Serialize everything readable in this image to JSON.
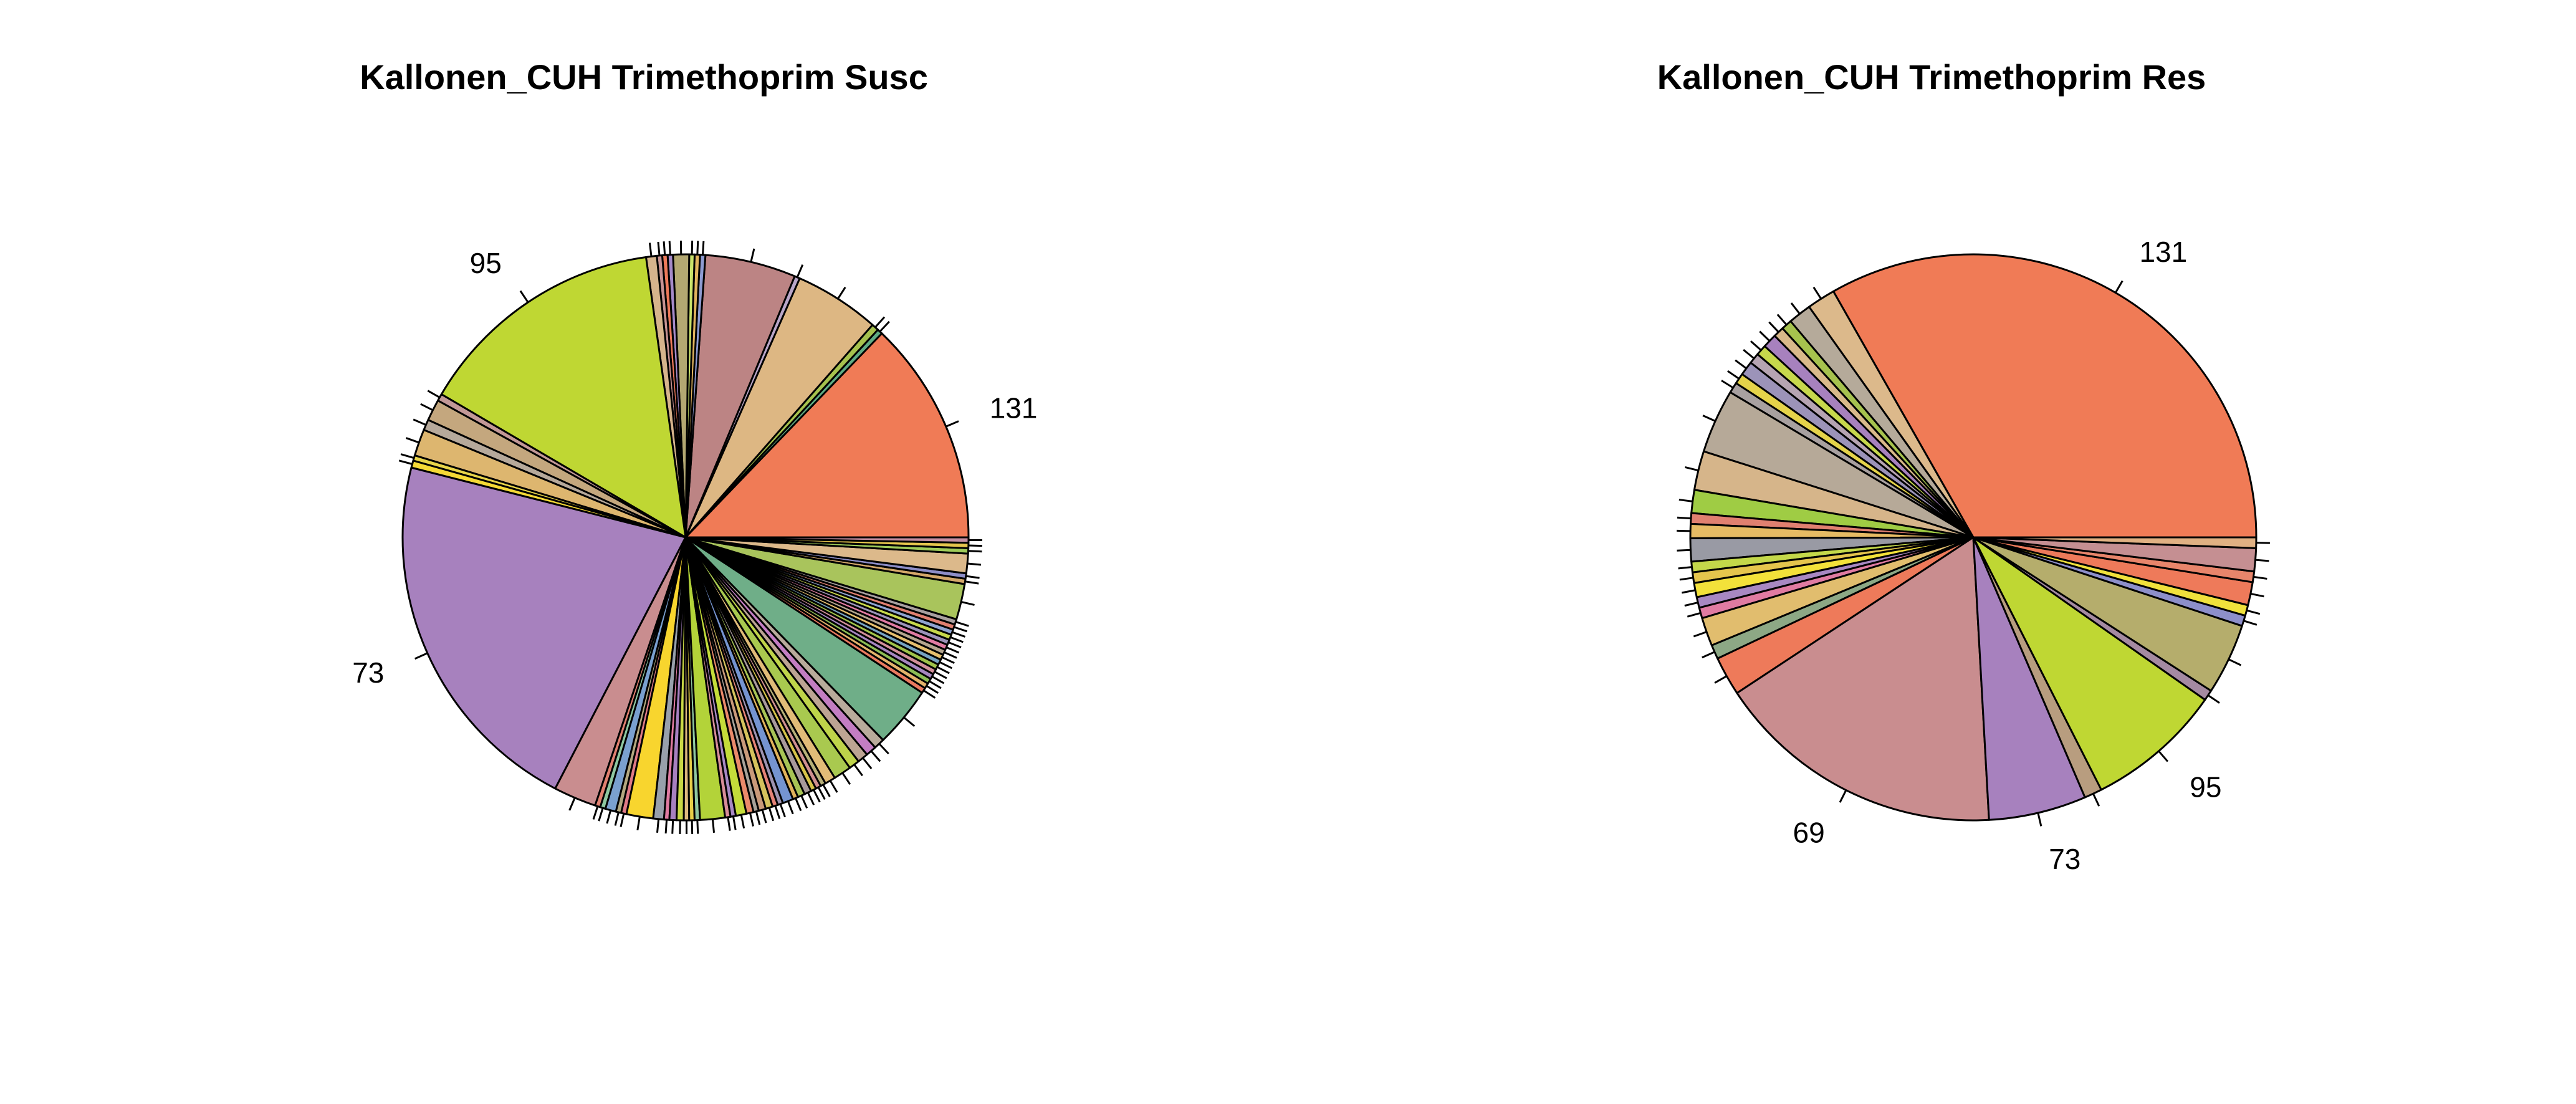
{
  "chart_data": [
    {
      "type": "pie",
      "title": "Kallonen_CUH Trimethoprim Susc",
      "slices": [
        {
          "label": "131",
          "value": 12.6,
          "color": "#f07b56"
        },
        {
          "label": "",
          "value": 0.3,
          "color": "#5fab84"
        },
        {
          "label": "",
          "value": 0.4,
          "color": "#a6c24e"
        },
        {
          "label": "",
          "value": 4.8,
          "color": "#ddb783"
        },
        {
          "label": "",
          "value": 0.3,
          "color": "#b9a6c8"
        },
        {
          "label": "",
          "value": 5.1,
          "color": "#bc8484"
        },
        {
          "label": "",
          "value": 0.3,
          "color": "#8d9bd1"
        },
        {
          "label": "",
          "value": 0.3,
          "color": "#e0b35e"
        },
        {
          "label": "",
          "value": 0.3,
          "color": "#c8e26a"
        },
        {
          "label": "",
          "value": 0.9,
          "color": "#b3a872"
        },
        {
          "label": "",
          "value": 0.3,
          "color": "#a58ac9"
        },
        {
          "label": "",
          "value": 0.3,
          "color": "#ee7a5a"
        },
        {
          "label": "",
          "value": 0.3,
          "color": "#c89393"
        },
        {
          "label": "",
          "value": 0.6,
          "color": "#d6b48c"
        },
        {
          "label": "95",
          "value": 14.1,
          "color": "#bfd733"
        },
        {
          "label": "",
          "value": 0.4,
          "color": "#c29897"
        },
        {
          "label": "",
          "value": 1.2,
          "color": "#c4a77e"
        },
        {
          "label": "",
          "value": 0.6,
          "color": "#b6a99b"
        },
        {
          "label": "",
          "value": 1.5,
          "color": "#ddb66f"
        },
        {
          "label": "",
          "value": 0.3,
          "color": "#e7d44a"
        },
        {
          "label": "",
          "value": 0.4,
          "color": "#f5d936"
        },
        {
          "label": "73",
          "value": 21.0,
          "color": "#a781be"
        },
        {
          "label": "",
          "value": 2.4,
          "color": "#c98d8f"
        },
        {
          "label": "",
          "value": 0.3,
          "color": "#e08070"
        },
        {
          "label": "",
          "value": 0.3,
          "color": "#8fc7a0"
        },
        {
          "label": "",
          "value": 0.6,
          "color": "#7aa0cf"
        },
        {
          "label": "",
          "value": 0.3,
          "color": "#b3a880"
        },
        {
          "label": "",
          "value": 0.3,
          "color": "#df7a86"
        },
        {
          "label": "",
          "value": 1.5,
          "color": "#f8d52e"
        },
        {
          "label": "",
          "value": 0.6,
          "color": "#98a0ab"
        },
        {
          "label": "",
          "value": 0.3,
          "color": "#e07ba2"
        },
        {
          "label": "",
          "value": 0.4,
          "color": "#a780c0"
        },
        {
          "label": "",
          "value": 0.4,
          "color": "#c9d846"
        },
        {
          "label": "",
          "value": 0.3,
          "color": "#ddb87f"
        },
        {
          "label": "",
          "value": 0.3,
          "color": "#e6ce48"
        },
        {
          "label": "",
          "value": 0.3,
          "color": "#8fc7a0"
        },
        {
          "label": "",
          "value": 1.4,
          "color": "#b3d339"
        },
        {
          "label": "",
          "value": 0.3,
          "color": "#d88d99"
        },
        {
          "label": "",
          "value": 0.3,
          "color": "#a889c4"
        },
        {
          "label": "",
          "value": 0.6,
          "color": "#c4dc3a"
        },
        {
          "label": "",
          "value": 0.4,
          "color": "#ea8a6b"
        },
        {
          "label": "",
          "value": 0.3,
          "color": "#a7a198"
        },
        {
          "label": "",
          "value": 0.4,
          "color": "#c99a7a"
        },
        {
          "label": "",
          "value": 0.4,
          "color": "#d5c25d"
        },
        {
          "label": "",
          "value": 0.3,
          "color": "#e58377"
        },
        {
          "label": "",
          "value": 0.3,
          "color": "#9e93b0"
        },
        {
          "label": "",
          "value": 0.6,
          "color": "#7594d0"
        },
        {
          "label": "",
          "value": 0.3,
          "color": "#e0b25b"
        },
        {
          "label": "",
          "value": 0.4,
          "color": "#a8c455"
        },
        {
          "label": "",
          "value": 0.4,
          "color": "#a89a9c"
        },
        {
          "label": "",
          "value": 0.3,
          "color": "#d6c24a"
        },
        {
          "label": "",
          "value": 0.3,
          "color": "#cf8f8f"
        },
        {
          "label": "",
          "value": 0.3,
          "color": "#b7b079"
        },
        {
          "label": "",
          "value": 0.6,
          "color": "#e1bc78"
        },
        {
          "label": "",
          "value": 1.0,
          "color": "#a9c94f"
        },
        {
          "label": "",
          "value": 0.6,
          "color": "#bfd44a"
        },
        {
          "label": "",
          "value": 0.6,
          "color": "#bda493"
        },
        {
          "label": "",
          "value": 0.6,
          "color": "#c37dc2"
        },
        {
          "label": "",
          "value": 0.6,
          "color": "#b9ab9b"
        },
        {
          "label": "",
          "value": 3.4,
          "color": "#6fae88"
        },
        {
          "label": "",
          "value": 0.3,
          "color": "#ea7a5f"
        },
        {
          "label": "",
          "value": 0.3,
          "color": "#e3b36b"
        },
        {
          "label": "",
          "value": 0.3,
          "color": "#8dbd55"
        },
        {
          "label": "",
          "value": 0.3,
          "color": "#a686c0"
        },
        {
          "label": "",
          "value": 0.3,
          "color": "#d18f9a"
        },
        {
          "label": "",
          "value": 0.3,
          "color": "#9fc24a"
        },
        {
          "label": "",
          "value": 0.3,
          "color": "#76a3c2"
        },
        {
          "label": "",
          "value": 0.3,
          "color": "#e6bf6e"
        },
        {
          "label": "",
          "value": 0.3,
          "color": "#b4a58f"
        },
        {
          "label": "",
          "value": 0.3,
          "color": "#e07ba2"
        },
        {
          "label": "",
          "value": 0.3,
          "color": "#9c93b9"
        },
        {
          "label": "",
          "value": 0.3,
          "color": "#c7d84c"
        },
        {
          "label": "",
          "value": 0.3,
          "color": "#8fa3cf"
        },
        {
          "label": "",
          "value": 0.3,
          "color": "#e08070"
        },
        {
          "label": "",
          "value": 0.3,
          "color": "#a8a0a0"
        },
        {
          "label": "",
          "value": 2.0,
          "color": "#a9c45c"
        },
        {
          "label": "",
          "value": 0.3,
          "color": "#d4a86a"
        },
        {
          "label": "",
          "value": 0.3,
          "color": "#8e8ec8"
        },
        {
          "label": "",
          "value": 1.1,
          "color": "#dcb98b"
        },
        {
          "label": "",
          "value": 0.3,
          "color": "#9fcc5a"
        },
        {
          "label": "",
          "value": 0.3,
          "color": "#e5c54d"
        },
        {
          "label": "",
          "value": 0.3,
          "color": "#c690a3"
        }
      ]
    },
    {
      "type": "pie",
      "title": "Kallonen_CUH Trimethoprim Res",
      "slices": [
        {
          "label": "131",
          "value": 32.8,
          "color": "#f07b56"
        },
        {
          "label": "",
          "value": 1.6,
          "color": "#dcb98b"
        },
        {
          "label": "",
          "value": 1.3,
          "color": "#b5aa9a"
        },
        {
          "label": "",
          "value": 0.6,
          "color": "#a6c24e"
        },
        {
          "label": "",
          "value": 0.6,
          "color": "#d9b98a"
        },
        {
          "label": "",
          "value": 0.8,
          "color": "#a781be"
        },
        {
          "label": "",
          "value": 0.6,
          "color": "#c7d84c"
        },
        {
          "label": "",
          "value": 0.6,
          "color": "#b6a4b2"
        },
        {
          "label": "",
          "value": 0.8,
          "color": "#9c93b9"
        },
        {
          "label": "",
          "value": 0.6,
          "color": "#e5d34a"
        },
        {
          "label": "",
          "value": 0.6,
          "color": "#a8a0a0"
        },
        {
          "label": "",
          "value": 3.6,
          "color": "#b6a998"
        },
        {
          "label": "",
          "value": 2.2,
          "color": "#d6b58a"
        },
        {
          "label": "",
          "value": 1.3,
          "color": "#9fcc44"
        },
        {
          "label": "",
          "value": 0.6,
          "color": "#e08070"
        },
        {
          "label": "",
          "value": 0.8,
          "color": "#e6bb64"
        },
        {
          "label": "",
          "value": 1.3,
          "color": "#999aa4"
        },
        {
          "label": "",
          "value": 0.6,
          "color": "#c4d84a"
        },
        {
          "label": "",
          "value": 0.6,
          "color": "#e5c54d"
        },
        {
          "label": "",
          "value": 0.8,
          "color": "#f3e13a"
        },
        {
          "label": "",
          "value": 0.6,
          "color": "#a888c2"
        },
        {
          "label": "",
          "value": 0.6,
          "color": "#e07ba2"
        },
        {
          "label": "",
          "value": 1.6,
          "color": "#e1bd6e"
        },
        {
          "label": "",
          "value": 0.8,
          "color": "#8da885"
        },
        {
          "label": "",
          "value": 2.2,
          "color": "#ee7a5a"
        },
        {
          "label": "69",
          "value": 16.4,
          "color": "#c98d8f"
        },
        {
          "label": "73",
          "value": 5.5,
          "color": "#a781be"
        },
        {
          "label": "",
          "value": 1.0,
          "color": "#b89d7f"
        },
        {
          "label": "95",
          "value": 7.7,
          "color": "#bfd733"
        },
        {
          "label": "",
          "value": 0.6,
          "color": "#a58aa2"
        },
        {
          "label": "",
          "value": 4.0,
          "color": "#b5ad6c"
        },
        {
          "label": "",
          "value": 0.6,
          "color": "#8d8fca"
        },
        {
          "label": "",
          "value": 0.6,
          "color": "#f0e13c"
        },
        {
          "label": "",
          "value": 1.3,
          "color": "#ee7a5a"
        },
        {
          "label": "",
          "value": 0.6,
          "color": "#e8856b"
        },
        {
          "label": "",
          "value": 1.3,
          "color": "#c58f92"
        },
        {
          "label": "",
          "value": 0.6,
          "color": "#e0b183"
        }
      ]
    }
  ]
}
